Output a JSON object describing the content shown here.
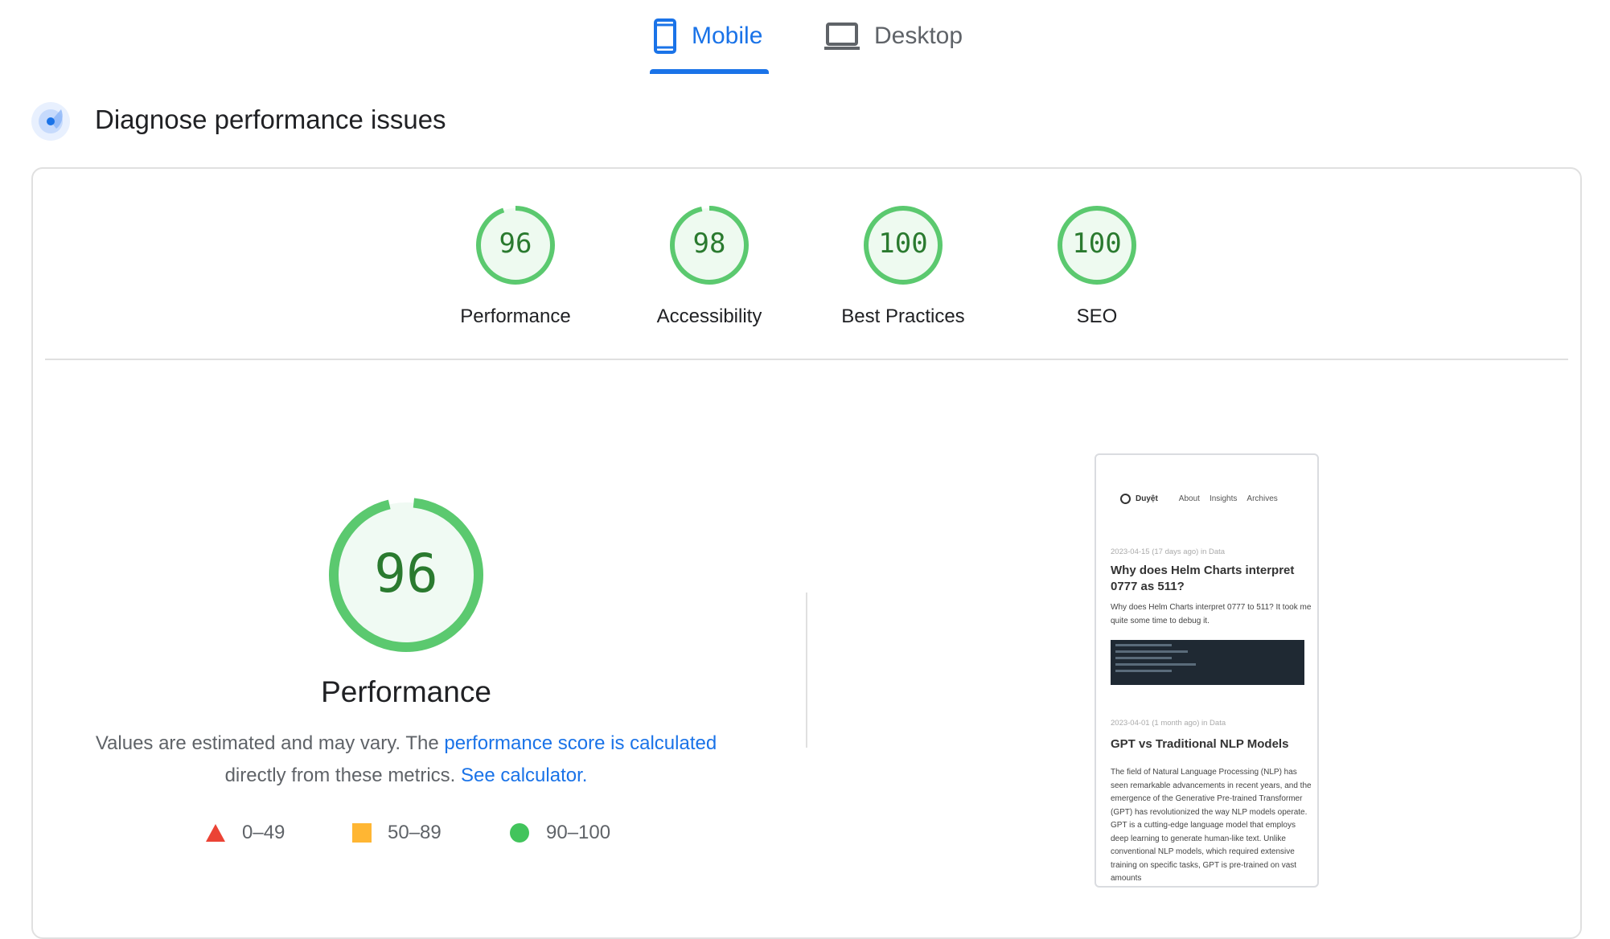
{
  "tabs": [
    {
      "label": "Mobile",
      "icon": "smartphone-icon",
      "active": true
    },
    {
      "label": "Desktop",
      "icon": "laptop-icon",
      "active": false
    }
  ],
  "section": {
    "title": "Diagnose performance issues",
    "icon": "lighthouse-radar-icon"
  },
  "scores": [
    {
      "label": "Performance",
      "value": 96
    },
    {
      "label": "Accessibility",
      "value": 98
    },
    {
      "label": "Best Practices",
      "value": 100
    },
    {
      "label": "SEO",
      "value": 100
    }
  ],
  "main": {
    "score": 96,
    "title": "Performance",
    "desc_1": "Values are estimated and may vary. The ",
    "desc_link_1": "performance score is calculated",
    "desc_2": " directly from these metrics. ",
    "desc_link_2": "See calculator."
  },
  "legend": [
    {
      "range": "0–49",
      "shape": "triangle",
      "color": "#eb4335"
    },
    {
      "range": "50–89",
      "shape": "square",
      "color": "#ffa400"
    },
    {
      "range": "90–100",
      "shape": "circle",
      "color": "#0cce6b"
    }
  ],
  "colors": {
    "accent": "#1a73e8",
    "pass": "#0cce6b",
    "pass_text": "#0d652d",
    "pass_bg": "#e6f4ea"
  },
  "screenshot": {
    "brand": "Duyệt",
    "nav": [
      "About",
      "Insights",
      "Archives"
    ],
    "posts": [
      {
        "meta": "2023-04-15  (17 days ago)  in Data",
        "title": "Why does Helm Charts interpret 0777 as 511?",
        "excerpt": "Why does Helm Charts interpret 0777 to 511? It took me quite some time to debug it."
      },
      {
        "meta": "2023-04-01  (1 month ago)  in Data",
        "title": "GPT vs Traditional NLP Models",
        "excerpt": "The field of Natural Language Processing (NLP) has seen remarkable advancements in recent years, and the emergence of the Generative Pre-trained Transformer (GPT) has revolutionized the way NLP models operate. GPT is a cutting-edge language model that employs deep learning to generate human-like text. Unlike conventional NLP models, which required extensive training on specific tasks, GPT is pre-trained on vast amounts"
      }
    ]
  }
}
